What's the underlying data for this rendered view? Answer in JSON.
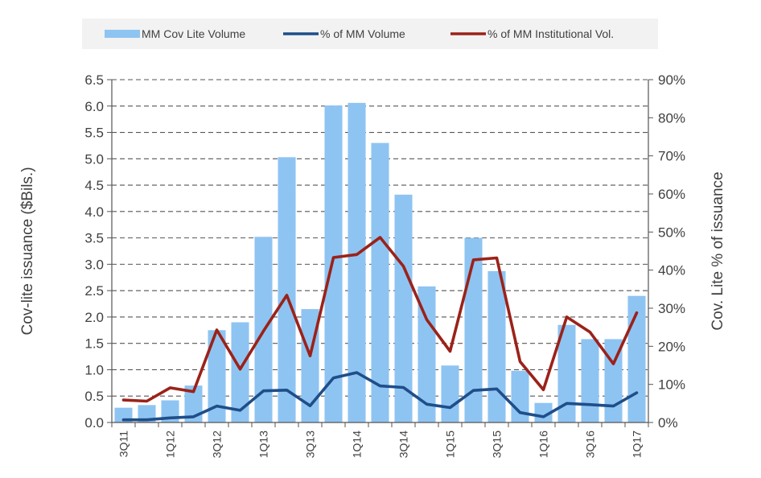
{
  "chart_data": {
    "type": "bar",
    "categories": [
      "3Q11",
      "4Q11",
      "1Q12",
      "2Q12",
      "3Q12",
      "4Q12",
      "1Q13",
      "2Q13",
      "3Q13",
      "4Q13",
      "1Q14",
      "2Q14",
      "3Q14",
      "4Q14",
      "1Q15",
      "2Q15",
      "3Q15",
      "4Q15",
      "1Q16",
      "2Q16",
      "3Q16",
      "4Q16",
      "1Q17"
    ],
    "category_labels_shown": [
      "3Q11",
      "1Q12",
      "3Q12",
      "1Q13",
      "3Q13",
      "1Q14",
      "3Q14",
      "1Q15",
      "3Q15",
      "1Q16",
      "3Q16",
      "1Q17"
    ],
    "series": [
      {
        "name": "MM Cov Lite Volume",
        "type": "bar",
        "axis": "left",
        "color": "#8EC4F2",
        "values": [
          0.28,
          0.33,
          0.42,
          0.7,
          1.75,
          1.9,
          3.52,
          5.03,
          2.15,
          6.01,
          6.06,
          5.3,
          4.32,
          2.58,
          1.08,
          3.5,
          2.87,
          0.98,
          0.37,
          1.85,
          1.58,
          1.58,
          2.4
        ]
      },
      {
        "name": "% of MM Volume",
        "type": "line",
        "axis": "right",
        "color": "#1F4E89",
        "values": [
          0.007,
          0.007,
          0.012,
          0.015,
          0.043,
          0.032,
          0.083,
          0.085,
          0.044,
          0.117,
          0.131,
          0.096,
          0.092,
          0.048,
          0.039,
          0.084,
          0.088,
          0.026,
          0.015,
          0.05,
          0.047,
          0.043,
          0.078
        ]
      },
      {
        "name": "% of MM Institutional Vol.",
        "type": "line",
        "axis": "right",
        "color": "#9B2219",
        "values": [
          0.059,
          0.056,
          0.091,
          0.081,
          0.243,
          0.14,
          0.24,
          0.334,
          0.175,
          0.433,
          0.441,
          0.486,
          0.41,
          0.27,
          0.187,
          0.427,
          0.432,
          0.16,
          0.086,
          0.277,
          0.237,
          0.154,
          0.288
        ]
      }
    ],
    "left_axis": {
      "label": "Cov-lite issuance ($Bils.)",
      "min": 0,
      "max": 6.5,
      "ticks": [
        "0.0",
        "0.5",
        "1.0",
        "1.5",
        "2.0",
        "2.5",
        "3.0",
        "3.5",
        "4.0",
        "4.5",
        "5.0",
        "5.5",
        "6.0",
        "6.5"
      ]
    },
    "right_axis": {
      "label": "Cov. Lite % of issuance",
      "min": 0,
      "max": 0.9,
      "ticks": [
        "0%",
        "10%",
        "20%",
        "30%",
        "40%",
        "50%",
        "60%",
        "70%",
        "80%",
        "90%"
      ]
    },
    "grid": "horizontal-dashed",
    "legend_position": "top"
  }
}
